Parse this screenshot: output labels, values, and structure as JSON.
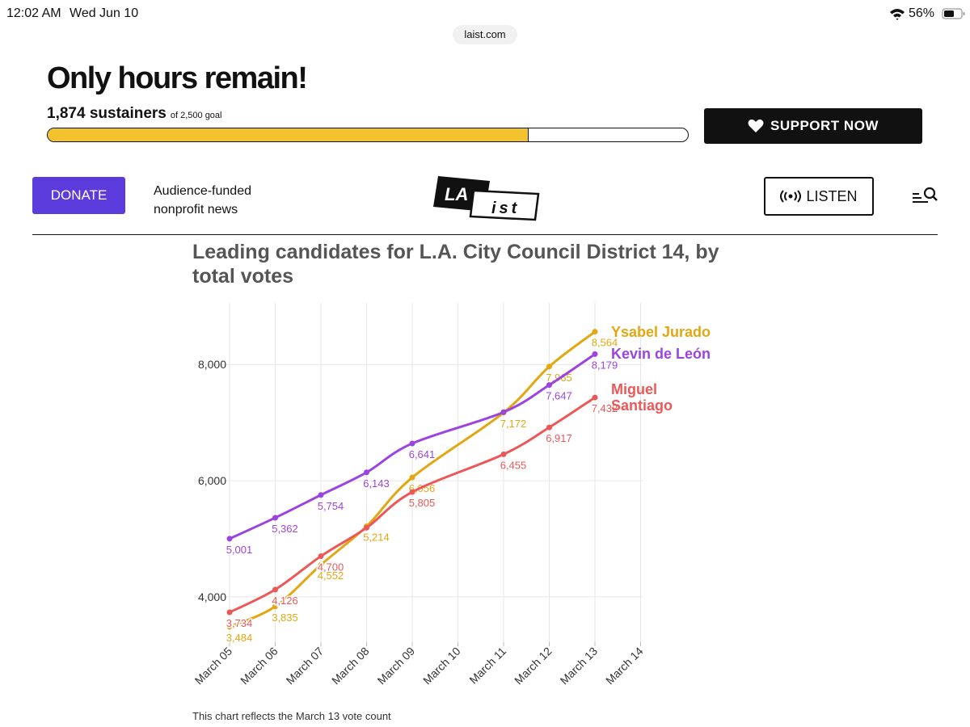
{
  "status_bar": {
    "time": "12:02 AM",
    "date": "Wed Jun 10",
    "url": "laist.com",
    "battery": "56%"
  },
  "banner": {
    "headline": "Only hours remain!",
    "count": {
      "value": 1874,
      "label": "1,874 sustainers"
    },
    "goal": {
      "value": 2500,
      "label": "of 2,500 goal"
    },
    "button": "SUPPORT NOW"
  },
  "nav": {
    "donate": "DONATE",
    "tagline": [
      "Audience-funded",
      "nonprofit news"
    ],
    "logo": [
      "LA",
      "ist"
    ],
    "listen": "LISTEN"
  },
  "chart_data": {
    "type": "line",
    "title": "Leading candidates for L.A. City Council District 14, by total votes",
    "categories": [
      "March 05",
      "March 06",
      "March 07",
      "March 08",
      "March 09",
      "March 10",
      "March 11",
      "March 12",
      "March 13",
      "March 14"
    ],
    "ylim": [
      3220,
      9060
    ],
    "yticks": [
      {
        "value": 4000,
        "label": "4,000"
      },
      {
        "value": 6000,
        "label": "6,000"
      },
      {
        "value": 8000,
        "label": "8,000"
      }
    ],
    "grid": true,
    "series": [
      {
        "name": "Ysabel Jurado",
        "color": "#e2a711",
        "x": [
          "March 05",
          "March 06",
          "March 07",
          "March 08",
          "March 09",
          "March 11",
          "March 12",
          "March 13"
        ],
        "values": [
          3484,
          3835,
          4552,
          5214,
          6056,
          7172,
          7965,
          8564
        ],
        "value_labels": [
          "3,484",
          "3,835",
          "4,552",
          "5,214",
          "6,056",
          "7,172",
          "7,965",
          "8,564"
        ]
      },
      {
        "name": "Kevin de León",
        "color": "#9b44e0",
        "x": [
          "March 05",
          "March 06",
          "March 07",
          "March 08",
          "March 09",
          "March 11",
          "March 12",
          "March 13"
        ],
        "values": [
          5001,
          5362,
          5754,
          6143,
          6641,
          7180,
          7647,
          8179
        ],
        "value_labels": [
          "5,001",
          "5,362",
          "5,754",
          "6,143",
          "6,641",
          null,
          "7,647",
          "8,179"
        ]
      },
      {
        "name": "Miguel Santiago",
        "color": "#ec5858",
        "x": [
          "March 05",
          "March 06",
          "March 07",
          "March 08",
          "March 09",
          "March 11",
          "March 12",
          "March 13"
        ],
        "values": [
          3734,
          4126,
          4700,
          5190,
          5805,
          6455,
          6917,
          7432
        ],
        "value_labels": [
          "3,734",
          "4,126",
          "4,700",
          null,
          "5,805",
          "6,455",
          "6,917",
          "7,432"
        ]
      }
    ],
    "note": "This chart reflects the March 13 vote count"
  }
}
